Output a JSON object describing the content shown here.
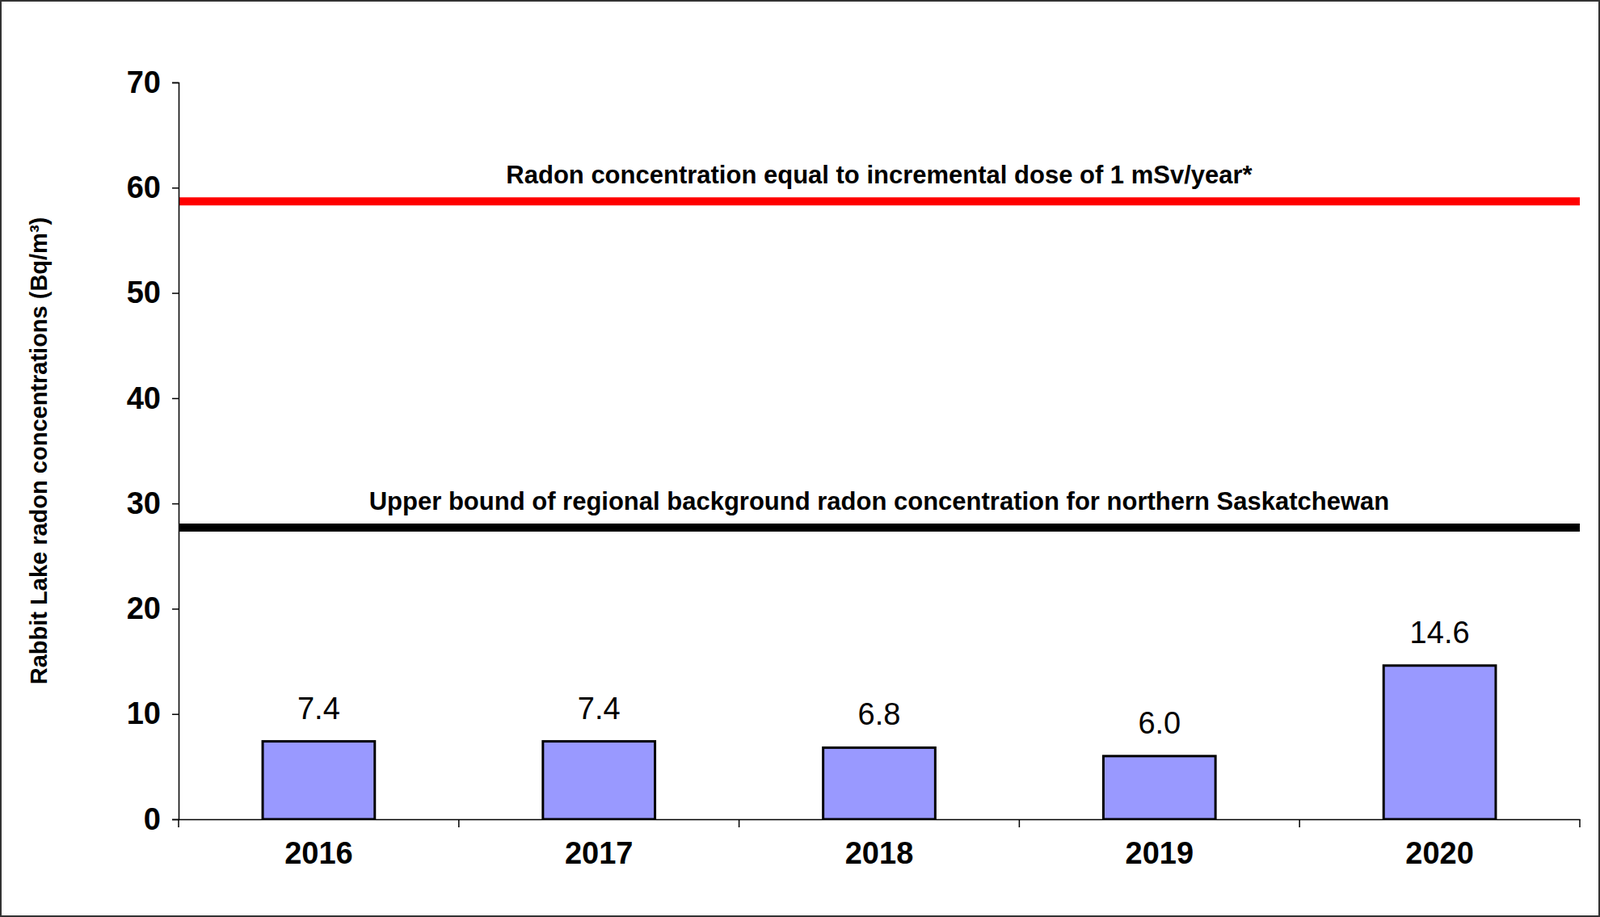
{
  "chart_data": {
    "type": "bar",
    "y_label": "Rabbit Lake radon concentrations (Bq/m³)",
    "categories": [
      "2016",
      "2017",
      "2018",
      "2019",
      "2020"
    ],
    "values": [
      7.4,
      7.4,
      6.8,
      6.0,
      14.6
    ],
    "value_labels": [
      "7.4",
      "7.4",
      "6.8",
      "6.0",
      "14.6"
    ],
    "color": "#9999ff",
    "data_labels": true,
    "grid": false,
    "ylim": [
      0,
      70
    ],
    "yticks": [
      0,
      10,
      20,
      30,
      40,
      50,
      60,
      70
    ],
    "annotations": [
      {
        "text": "Radon concentration equal to incremental dose of 1 mSv/year*",
        "y": 58.7,
        "color": "#ff0000"
      },
      {
        "text": "Upper bound of regional background radon concentration for northern Saskatchewan",
        "y": 27.7,
        "color": "#000000"
      }
    ]
  }
}
